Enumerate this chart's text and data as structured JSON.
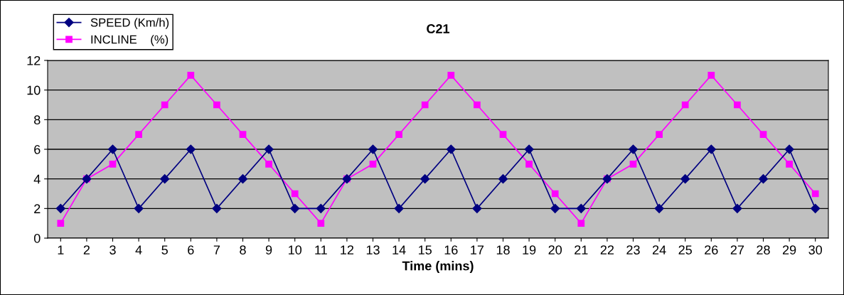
{
  "chart_data": {
    "type": "line",
    "title": "C21",
    "xlabel": "Time (mins)",
    "categories": [
      "1",
      "2",
      "3",
      "4",
      "5",
      "6",
      "7",
      "8",
      "9",
      "10",
      "11",
      "12",
      "13",
      "14",
      "15",
      "16",
      "17",
      "18",
      "19",
      "20",
      "21",
      "22",
      "23",
      "24",
      "25",
      "26",
      "27",
      "28",
      "29",
      "30"
    ],
    "series": [
      {
        "name": "SPEED (Km/h)",
        "color": "#000080",
        "marker": "diamond",
        "values": [
          2,
          4,
          6,
          2,
          4,
          6,
          2,
          4,
          6,
          2,
          2,
          4,
          6,
          2,
          4,
          6,
          2,
          4,
          6,
          2,
          2,
          4,
          6,
          2,
          4,
          6,
          2,
          4,
          6,
          2
        ]
      },
      {
        "name": "INCLINE    (%)",
        "color": "#ff00ff",
        "marker": "square",
        "values": [
          1,
          4,
          5,
          7,
          9,
          11,
          9,
          7,
          5,
          3,
          1,
          4,
          5,
          7,
          9,
          11,
          9,
          7,
          5,
          3,
          1,
          4,
          5,
          7,
          9,
          11,
          9,
          7,
          5,
          3
        ]
      }
    ],
    "ylim": [
      0,
      12
    ],
    "yticks": [
      0,
      2,
      4,
      6,
      8,
      10,
      12
    ],
    "grid": "y",
    "legend": "top left",
    "line_style": "solid"
  }
}
